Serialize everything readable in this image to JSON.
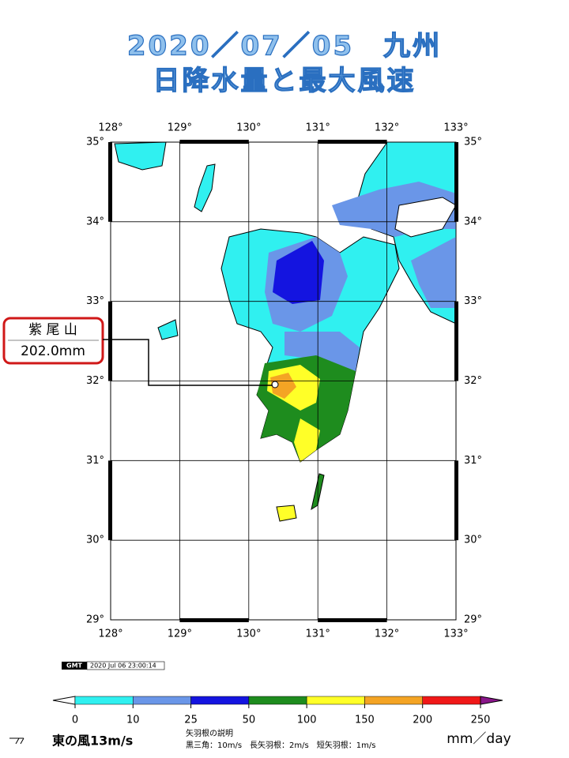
{
  "header": {
    "title_line1": "2020／07／05　九州",
    "title_line2": "日降水量と最大風速"
  },
  "map": {
    "lon_labels": [
      "128°",
      "129°",
      "130°",
      "131°",
      "132°",
      "133°"
    ],
    "lat_labels": [
      "35°",
      "34°",
      "33°",
      "32°",
      "31°",
      "30°",
      "29°"
    ]
  },
  "callout": {
    "station": "紫 尾 山",
    "amount": "202.0mm"
  },
  "stamp": {
    "logo": "GMT",
    "time": "2020 Jul 06 23:00:14"
  },
  "colorbar": {
    "labels": [
      "0",
      "10",
      "25",
      "50",
      "100",
      "150",
      "200",
      "250"
    ],
    "colors": [
      "#30f0f0",
      "#6a96e8",
      "#1414e0",
      "#1e8c1e",
      "#ffff28",
      "#f4a424",
      "#f01818"
    ],
    "over_color": "#8a168a",
    "unit": "mm／day"
  },
  "legend": {
    "wind_example": "東の風13m/s",
    "barb_title": "矢羽根の説明",
    "barb_text": "黒三角：10m/s　長矢羽根：2m/s　短矢羽根：1m/s"
  }
}
